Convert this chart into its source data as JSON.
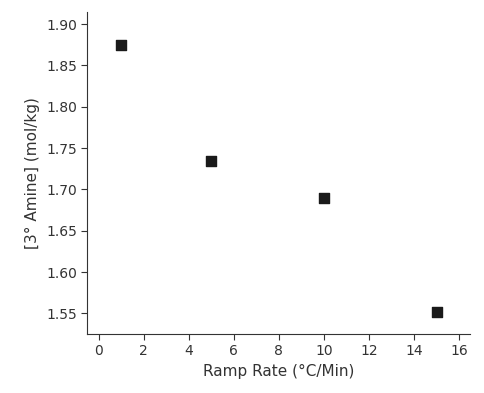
{
  "x": [
    1,
    5,
    10,
    15
  ],
  "y": [
    1.875,
    1.735,
    1.69,
    1.552
  ],
  "xlabel": "Ramp Rate (°C/Min)",
  "ylabel": "[3° Amine] (mol/kg)",
  "xlim": [
    -0.5,
    16.5
  ],
  "ylim": [
    1.525,
    1.915
  ],
  "xticks": [
    0,
    2,
    4,
    6,
    8,
    10,
    12,
    14,
    16
  ],
  "yticks": [
    1.55,
    1.6,
    1.65,
    1.7,
    1.75,
    1.8,
    1.85,
    1.9
  ],
  "marker": "s",
  "marker_color": "#1a1a1a",
  "marker_size": 55,
  "background_color": "#ffffff",
  "spine_color": "#333333",
  "tick_color": "#333333",
  "label_fontsize": 11,
  "tick_fontsize": 10
}
